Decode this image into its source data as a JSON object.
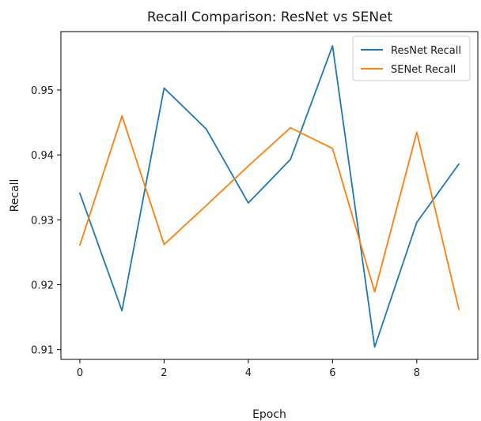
{
  "chart_data": {
    "type": "line",
    "title": "Recall Comparison: ResNet vs SENet",
    "xlabel": "Epoch",
    "ylabel": "Recall",
    "x": [
      0,
      1,
      2,
      3,
      4,
      5,
      6,
      7,
      8,
      9
    ],
    "xlim": [
      -0.45,
      9.45
    ],
    "ylim": [
      0.9085,
      0.959
    ],
    "xticks": [
      0,
      2,
      4,
      6,
      8
    ],
    "xtick_labels": [
      "0",
      "2",
      "4",
      "6",
      "8"
    ],
    "yticks": [
      0.91,
      0.92,
      0.93,
      0.94,
      0.95
    ],
    "ytick_labels": [
      "0.91",
      "0.92",
      "0.93",
      "0.94",
      "0.95"
    ],
    "grid": false,
    "legend_position": "top-right",
    "series": [
      {
        "name": "ResNet Recall",
        "color": "#1f77b4",
        "values": [
          0.9341,
          0.916,
          0.9503,
          0.944,
          0.9326,
          0.9393,
          0.9568,
          0.9104,
          0.9296,
          0.9386
        ]
      },
      {
        "name": "SENet Recall",
        "color": "#ff7f0e",
        "values": [
          0.9261,
          0.946,
          0.9262,
          0.9322,
          0.9383,
          0.9442,
          0.941,
          0.9189,
          0.9435,
          0.9162
        ]
      }
    ]
  }
}
